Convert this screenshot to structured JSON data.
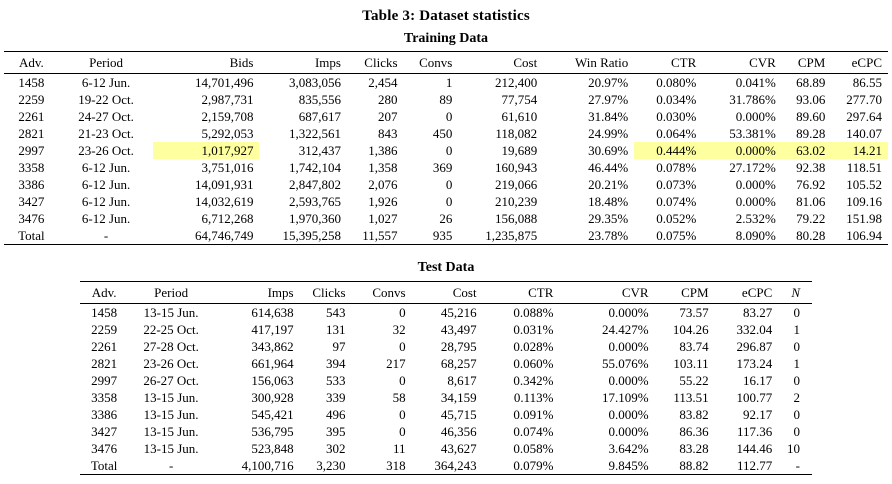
{
  "caption": "Table 3: Dataset statistics",
  "highlight": {
    "color": "#feff9e"
  },
  "training": {
    "title": "Training Data",
    "columns": [
      "Adv.",
      "Period",
      "Bids",
      "Imps",
      "Clicks",
      "Convs",
      "Cost",
      "Win Ratio",
      "CTR",
      "CVR",
      "CPM",
      "eCPC"
    ],
    "rows": [
      [
        "1458",
        "6-12 Jun.",
        "14,701,496",
        "3,083,056",
        "2,454",
        "1",
        "212,400",
        "20.97%",
        "0.080%",
        "0.041%",
        "68.89",
        "86.55"
      ],
      [
        "2259",
        "19-22 Oct.",
        "2,987,731",
        "835,556",
        "280",
        "89",
        "77,754",
        "27.97%",
        "0.034%",
        "31.786%",
        "93.06",
        "277.70"
      ],
      [
        "2261",
        "24-27 Oct.",
        "2,159,708",
        "687,617",
        "207",
        "0",
        "61,610",
        "31.84%",
        "0.030%",
        "0.000%",
        "89.60",
        "297.64"
      ],
      [
        "2821",
        "21-23 Oct.",
        "5,292,053",
        "1,322,561",
        "843",
        "450",
        "118,082",
        "24.99%",
        "0.064%",
        "53.381%",
        "89.28",
        "140.07"
      ],
      [
        "2997",
        "23-26 Oct.",
        "1,017,927",
        "312,437",
        "1,386",
        "0",
        "19,689",
        "30.69%",
        "0.444%",
        "0.000%",
        "63.02",
        "14.21"
      ],
      [
        "3358",
        "6-12 Jun.",
        "3,751,016",
        "1,742,104",
        "1,358",
        "369",
        "160,943",
        "46.44%",
        "0.078%",
        "27.172%",
        "92.38",
        "118.51"
      ],
      [
        "3386",
        "6-12 Jun.",
        "14,091,931",
        "2,847,802",
        "2,076",
        "0",
        "219,066",
        "20.21%",
        "0.073%",
        "0.000%",
        "76.92",
        "105.52"
      ],
      [
        "3427",
        "6-12 Jun.",
        "14,032,619",
        "2,593,765",
        "1,926",
        "0",
        "210,239",
        "18.48%",
        "0.074%",
        "0.000%",
        "81.06",
        "109.16"
      ],
      [
        "3476",
        "6-12 Jun.",
        "6,712,268",
        "1,970,360",
        "1,027",
        "26",
        "156,088",
        "29.35%",
        "0.052%",
        "2.532%",
        "79.22",
        "151.98"
      ],
      [
        "Total",
        "-",
        "64,746,749",
        "15,395,258",
        "11,557",
        "935",
        "1,235,875",
        "23.78%",
        "0.075%",
        "8.090%",
        "80.28",
        "106.94"
      ]
    ],
    "highlighted_cells": [
      {
        "row": 4,
        "col": 2
      },
      {
        "row": 4,
        "col": 8
      },
      {
        "row": 4,
        "col": 9
      },
      {
        "row": 4,
        "col": 10
      },
      {
        "row": 4,
        "col": 11
      }
    ]
  },
  "test": {
    "title": "Test Data",
    "columns": [
      "Adv.",
      "Period",
      "Imps",
      "Clicks",
      "Convs",
      "Cost",
      "CTR",
      "CVR",
      "CPM",
      "eCPC",
      "N"
    ],
    "rows": [
      [
        "1458",
        "13-15 Jun.",
        "614,638",
        "543",
        "0",
        "45,216",
        "0.088%",
        "0.000%",
        "73.57",
        "83.27",
        "0"
      ],
      [
        "2259",
        "22-25 Oct.",
        "417,197",
        "131",
        "32",
        "43,497",
        "0.031%",
        "24.427%",
        "104.26",
        "332.04",
        "1"
      ],
      [
        "2261",
        "27-28 Oct.",
        "343,862",
        "97",
        "0",
        "28,795",
        "0.028%",
        "0.000%",
        "83.74",
        "296.87",
        "0"
      ],
      [
        "2821",
        "23-26 Oct.",
        "661,964",
        "394",
        "217",
        "68,257",
        "0.060%",
        "55.076%",
        "103.11",
        "173.24",
        "1"
      ],
      [
        "2997",
        "26-27 Oct.",
        "156,063",
        "533",
        "0",
        "8,617",
        "0.342%",
        "0.000%",
        "55.22",
        "16.17",
        "0"
      ],
      [
        "3358",
        "13-15 Jun.",
        "300,928",
        "339",
        "58",
        "34,159",
        "0.113%",
        "17.109%",
        "113.51",
        "100.77",
        "2"
      ],
      [
        "3386",
        "13-15 Jun.",
        "545,421",
        "496",
        "0",
        "45,715",
        "0.091%",
        "0.000%",
        "83.82",
        "92.17",
        "0"
      ],
      [
        "3427",
        "13-15 Jun.",
        "536,795",
        "395",
        "0",
        "46,356",
        "0.074%",
        "0.000%",
        "86.36",
        "117.36",
        "0"
      ],
      [
        "3476",
        "13-15 Jun.",
        "523,848",
        "302",
        "11",
        "43,627",
        "0.058%",
        "3.642%",
        "83.28",
        "144.46",
        "10"
      ],
      [
        "Total",
        "-",
        "4,100,716",
        "3,230",
        "318",
        "364,243",
        "0.079%",
        "9.845%",
        "88.82",
        "112.77",
        "-"
      ]
    ],
    "highlighted_cells": []
  }
}
